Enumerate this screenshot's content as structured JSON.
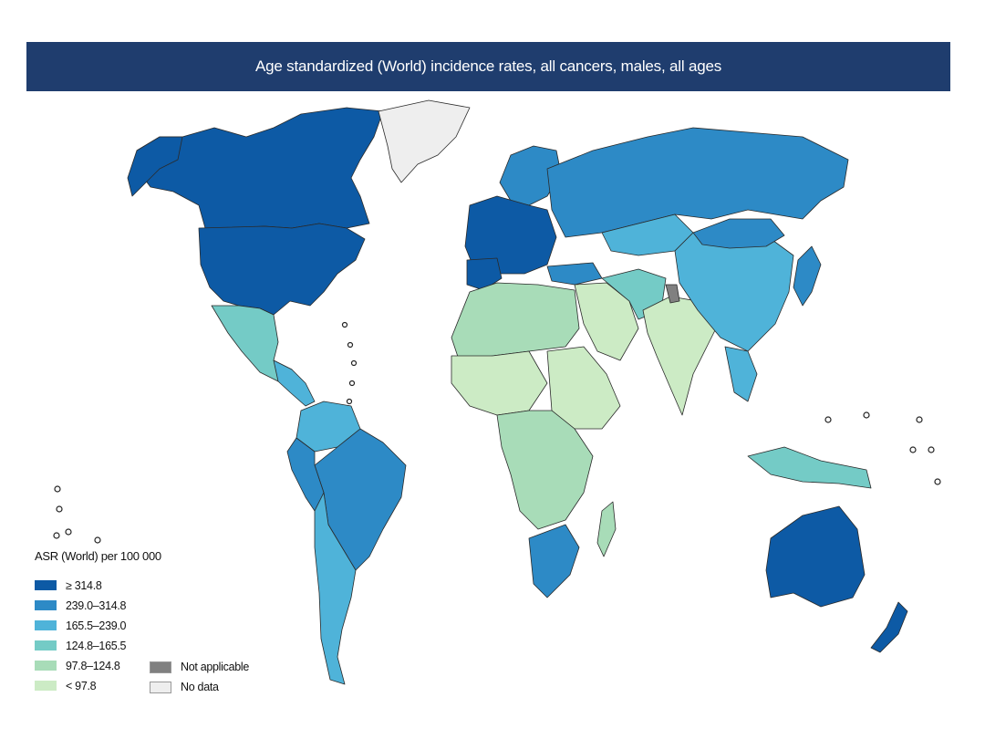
{
  "title": "Age standardized (World) incidence rates, all cancers, males, all ages",
  "legend": {
    "title": "ASR (World) per 100 000",
    "classes": [
      {
        "label": "≥ 314.8",
        "color": "#0d5aa5"
      },
      {
        "label": "239.0–314.8",
        "color": "#2d8ac6"
      },
      {
        "label": "165.5–239.0",
        "color": "#4fb3d9"
      },
      {
        "label": "124.8–165.5",
        "color": "#74cbc6"
      },
      {
        "label": "97.8–124.8",
        "color": "#a8dcb8"
      },
      {
        "label": "< 97.8",
        "color": "#ccebc5"
      }
    ],
    "not_applicable": {
      "label": "Not applicable",
      "color": "#808080"
    },
    "no_data": {
      "label": "No data",
      "color": "#eeeeee"
    }
  },
  "colors": {
    "title_bar": "#1f3d6e"
  }
}
